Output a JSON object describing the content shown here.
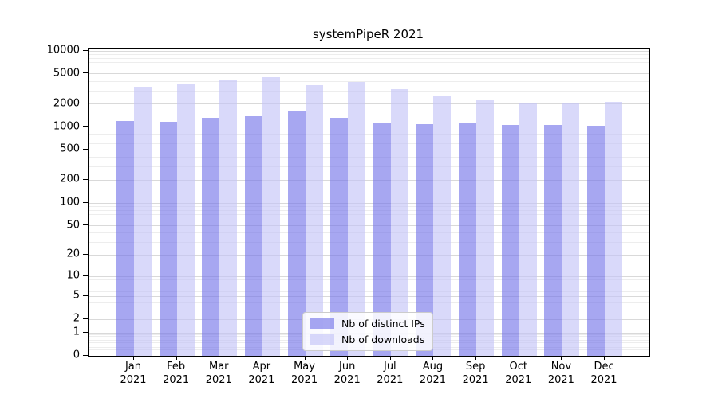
{
  "chart_data": {
    "type": "bar",
    "title": "systemPipeR 2021",
    "categories": [
      "Jan",
      "Feb",
      "Mar",
      "Apr",
      "May",
      "Jun",
      "Jul",
      "Aug",
      "Sep",
      "Oct",
      "Nov",
      "Dec"
    ],
    "category_year": "2021",
    "series": [
      {
        "name": "Nb of distinct IPs",
        "color": "#7171e8",
        "alpha": 0.62,
        "values": [
          1200,
          1170,
          1320,
          1380,
          1640,
          1320,
          1140,
          1090,
          1120,
          1060,
          1060,
          1040
        ]
      },
      {
        "name": "Nb of downloads",
        "color": "#c2c2f7",
        "alpha": 0.62,
        "values": [
          3380,
          3630,
          4200,
          4510,
          3540,
          3910,
          3140,
          2590,
          2240,
          2040,
          2090,
          2140
        ]
      }
    ],
    "yscale": "log1p",
    "yticks": [
      0,
      1,
      2,
      5,
      10,
      20,
      50,
      100,
      200,
      500,
      1000,
      2000,
      5000,
      10000
    ],
    "ylim": [
      0,
      10000
    ],
    "grid": true,
    "grid_major_color": "#d9d9d9",
    "grid_minor_color": "#ededed",
    "grid_emphasis_value": 1000,
    "grid_emphasis_color": "#b5b5b5",
    "legend_position": "lower center",
    "xlabel": "",
    "ylabel": ""
  }
}
